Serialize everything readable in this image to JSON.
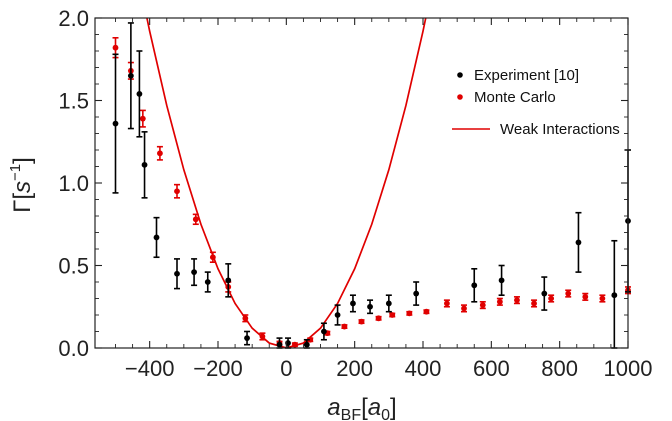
{
  "chart_data": {
    "type": "scatter",
    "title": "",
    "xlabel": {
      "main": "a",
      "sub": "BF",
      "unit_main": "a",
      "unit_sub": "0"
    },
    "ylabel": {
      "main": "Γ",
      "unit": "s",
      "exp": "−1"
    },
    "xlim": [
      -560,
      1000
    ],
    "ylim": [
      0,
      2.0
    ],
    "x_ticks": [
      -400,
      -200,
      0,
      200,
      400,
      600,
      800,
      1000
    ],
    "x_tick_labels": [
      "−400",
      "−200",
      "0",
      "200",
      "400",
      "600",
      "800",
      "1000"
    ],
    "y_ticks": [
      0.0,
      0.5,
      1.0,
      1.5,
      2.0
    ],
    "y_tick_labels": [
      "0.0",
      "0.5",
      "1.0",
      "1.5",
      "2.0"
    ],
    "grid": false,
    "legend_position": "top-right",
    "colors": {
      "experiment": "#000000",
      "monte_carlo": "#e00000",
      "weak": "#e00000"
    },
    "series": [
      {
        "name": "Experiment [10]",
        "kind": "points-with-errorbars",
        "color": "#000000",
        "x": [
          -500,
          -455,
          -430,
          -415,
          -380,
          -320,
          -270,
          -230,
          -170,
          -115,
          -20,
          5,
          60,
          110,
          150,
          195,
          245,
          300,
          380,
          550,
          630,
          755,
          855,
          960,
          1000
        ],
        "y": [
          1.36,
          1.65,
          1.54,
          1.11,
          0.67,
          0.45,
          0.46,
          0.4,
          0.41,
          0.06,
          0.02,
          0.03,
          0.02,
          0.1,
          0.2,
          0.27,
          0.25,
          0.27,
          0.33,
          0.38,
          0.41,
          0.33,
          0.64,
          0.32,
          0.77
        ],
        "err": [
          0.42,
          0.32,
          0.26,
          0.2,
          0.12,
          0.09,
          0.08,
          0.06,
          0.1,
          0.04,
          0.04,
          0.03,
          0.03,
          0.05,
          0.06,
          0.05,
          0.04,
          0.05,
          0.07,
          0.1,
          0.09,
          0.1,
          0.18,
          0.33,
          0.43
        ]
      },
      {
        "name": "Monte Carlo",
        "kind": "points-with-errorbars",
        "color": "#e00000",
        "x": [
          -500,
          -455,
          -420,
          -370,
          -320,
          -265,
          -215,
          -170,
          -120,
          -70,
          -20,
          25,
          70,
          120,
          170,
          220,
          270,
          310,
          360,
          410,
          470,
          520,
          575,
          625,
          675,
          725,
          775,
          825,
          875,
          925,
          1000
        ],
        "y": [
          1.82,
          1.68,
          1.39,
          1.18,
          0.95,
          0.78,
          0.55,
          0.37,
          0.18,
          0.07,
          0.03,
          0.02,
          0.05,
          0.09,
          0.13,
          0.16,
          0.18,
          0.2,
          0.21,
          0.22,
          0.27,
          0.24,
          0.26,
          0.28,
          0.29,
          0.27,
          0.3,
          0.33,
          0.31,
          0.3,
          0.35
        ],
        "err": [
          0.06,
          0.05,
          0.05,
          0.04,
          0.04,
          0.03,
          0.03,
          0.03,
          0.02,
          0.02,
          0.01,
          0.01,
          0.01,
          0.01,
          0.01,
          0.01,
          0.01,
          0.01,
          0.01,
          0.01,
          0.02,
          0.02,
          0.02,
          0.02,
          0.02,
          0.02,
          0.02,
          0.02,
          0.02,
          0.02,
          0.02
        ]
      },
      {
        "name": "Weak Interactions",
        "kind": "line",
        "color": "#e00000",
        "formula": "y = 1.2e-5 * x^2",
        "x": [
          -410,
          -400,
          -350,
          -300,
          -250,
          -200,
          -150,
          -100,
          -50,
          0,
          50,
          100,
          150,
          200,
          250,
          300,
          350,
          400,
          410
        ],
        "y": [
          2.02,
          1.92,
          1.47,
          1.08,
          0.75,
          0.48,
          0.27,
          0.12,
          0.03,
          0.0,
          0.03,
          0.12,
          0.27,
          0.48,
          0.75,
          1.08,
          1.47,
          1.92,
          2.02
        ]
      }
    ]
  }
}
